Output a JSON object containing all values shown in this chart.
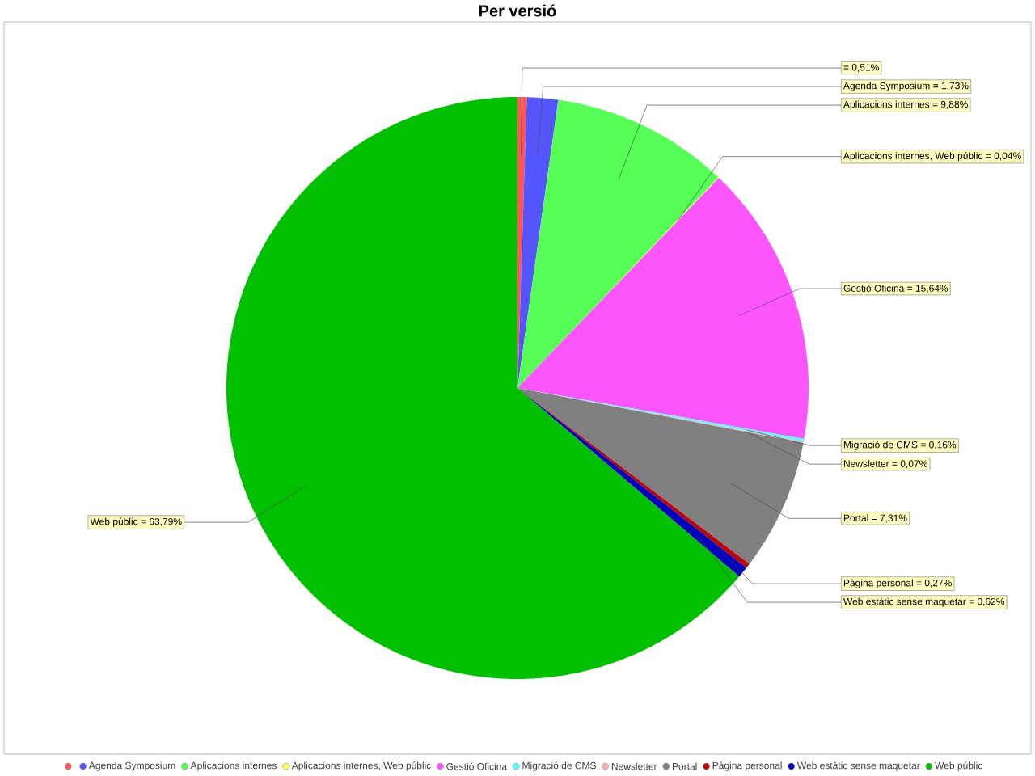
{
  "chart_data": {
    "type": "pie",
    "title": "Per versió",
    "categories": [
      null,
      "Agenda Symposium",
      "Aplicacions internes",
      "Aplicacions internes, Web públic",
      "Gestió Oficina",
      "Migració de CMS",
      "Newsletter",
      "Portal",
      "Pàgina personal",
      "Web estàtic sense maquetar",
      "Web públic"
    ],
    "values": [
      0.51,
      1.73,
      9.88,
      0.04,
      15.64,
      0.16,
      0.07,
      7.31,
      0.27,
      0.62,
      63.79
    ],
    "value_labels": [
      "= 0,51%",
      "Agenda Symposium = 1,73%",
      "Aplicacions internes = 9,88%",
      "Aplicacions internes, Web públic = 0,04%",
      "Gestió Oficina = 15,64%",
      "Migració de CMS = 0,16%",
      "Newsletter = 0,07%",
      "Portal = 7,31%",
      "Pàgina personal = 0,27%",
      "Web estàtic sense maquetar = 0,62%",
      "Web públic = 63,79%"
    ],
    "colors": [
      "#ff5555",
      "#5555ff",
      "#55ff55",
      "#ffff55",
      "#ff55ff",
      "#55ffff",
      "#ffafaf",
      "#808080",
      "#c00000",
      "#0000c0",
      "#00c000"
    ],
    "legend": "bottom"
  }
}
